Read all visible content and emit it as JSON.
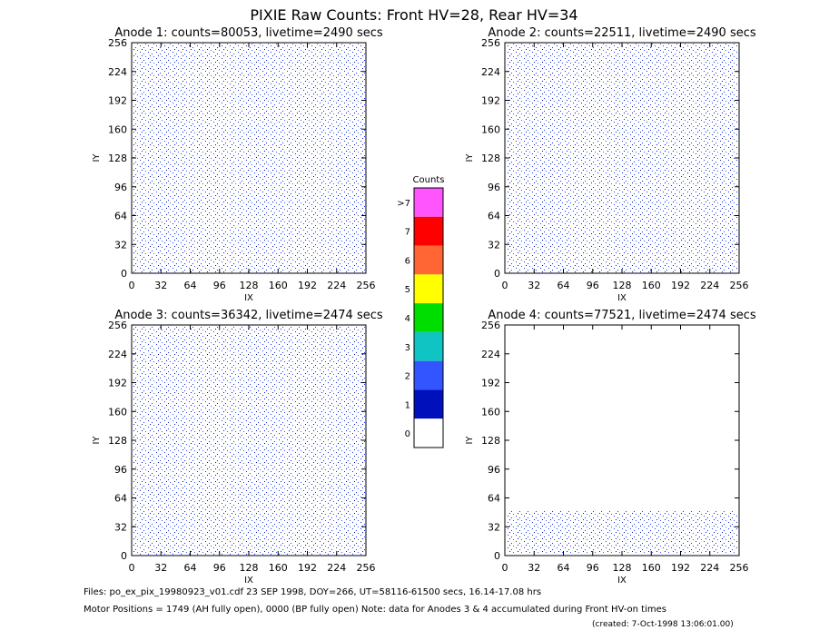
{
  "title": "PIXIE Raw Counts:  Front HV=28, Rear HV=34",
  "chart_data": [
    {
      "type": "heatmap",
      "title": "Anode 1: counts=80053, livetime=2490 secs",
      "xlabel": "IX",
      "ylabel": "IY",
      "xlim": [
        0,
        256
      ],
      "ylim": [
        0,
        256
      ],
      "xticks": [
        0,
        32,
        64,
        96,
        128,
        160,
        192,
        224,
        256
      ],
      "yticks": [
        0,
        32,
        64,
        96,
        128,
        160,
        192,
        224,
        256
      ]
    },
    {
      "type": "heatmap",
      "title": "Anode 2: counts=22511, livetime=2490 secs",
      "xlabel": "IX",
      "ylabel": "IY",
      "xlim": [
        0,
        256
      ],
      "ylim": [
        0,
        256
      ],
      "xticks": [
        0,
        32,
        64,
        96,
        128,
        160,
        192,
        224,
        256
      ],
      "yticks": [
        0,
        32,
        64,
        96,
        128,
        160,
        192,
        224,
        256
      ]
    },
    {
      "type": "heatmap",
      "title": "Anode 3: counts=36342, livetime=2474 secs",
      "xlabel": "IX",
      "ylabel": "IY",
      "xlim": [
        0,
        256
      ],
      "ylim": [
        0,
        256
      ],
      "xticks": [
        0,
        32,
        64,
        96,
        128,
        160,
        192,
        224,
        256
      ],
      "yticks": [
        0,
        32,
        64,
        96,
        128,
        160,
        192,
        224,
        256
      ]
    },
    {
      "type": "heatmap",
      "title": "Anode 4: counts=77521, livetime=2474 secs",
      "xlabel": "IX",
      "ylabel": "IY",
      "xlim": [
        0,
        256
      ],
      "ylim": [
        0,
        256
      ],
      "xticks": [
        0,
        32,
        64,
        96,
        128,
        160,
        192,
        224,
        256
      ],
      "yticks": [
        0,
        32,
        64,
        96,
        128,
        160,
        192,
        224,
        256
      ]
    }
  ],
  "colorbar": {
    "title": "Counts",
    "labels": [
      ">7",
      "7",
      "6",
      "5",
      "4",
      "3",
      "2",
      "1",
      "0"
    ],
    "colors": [
      "#ff55ff",
      "#ff0000",
      "#ff6633",
      "#ffff00",
      "#00dd00",
      "#11c4c4",
      "#3355ff",
      "#0011bb",
      "#ffffff"
    ]
  },
  "footer": {
    "files": "Files: po_ex_pix_19980923_v01.cdf      23 SEP 1998, DOY=266, UT=58116-61500 secs, 16.14-17.08 hrs",
    "motor": "Motor Positions = 1749 (AH fully open), 0000 (BP fully open)    Note: data for Anodes 3 & 4 accumulated during Front HV-on times",
    "created": "(created:  7-Oct-1998 13:06:01.00)"
  }
}
